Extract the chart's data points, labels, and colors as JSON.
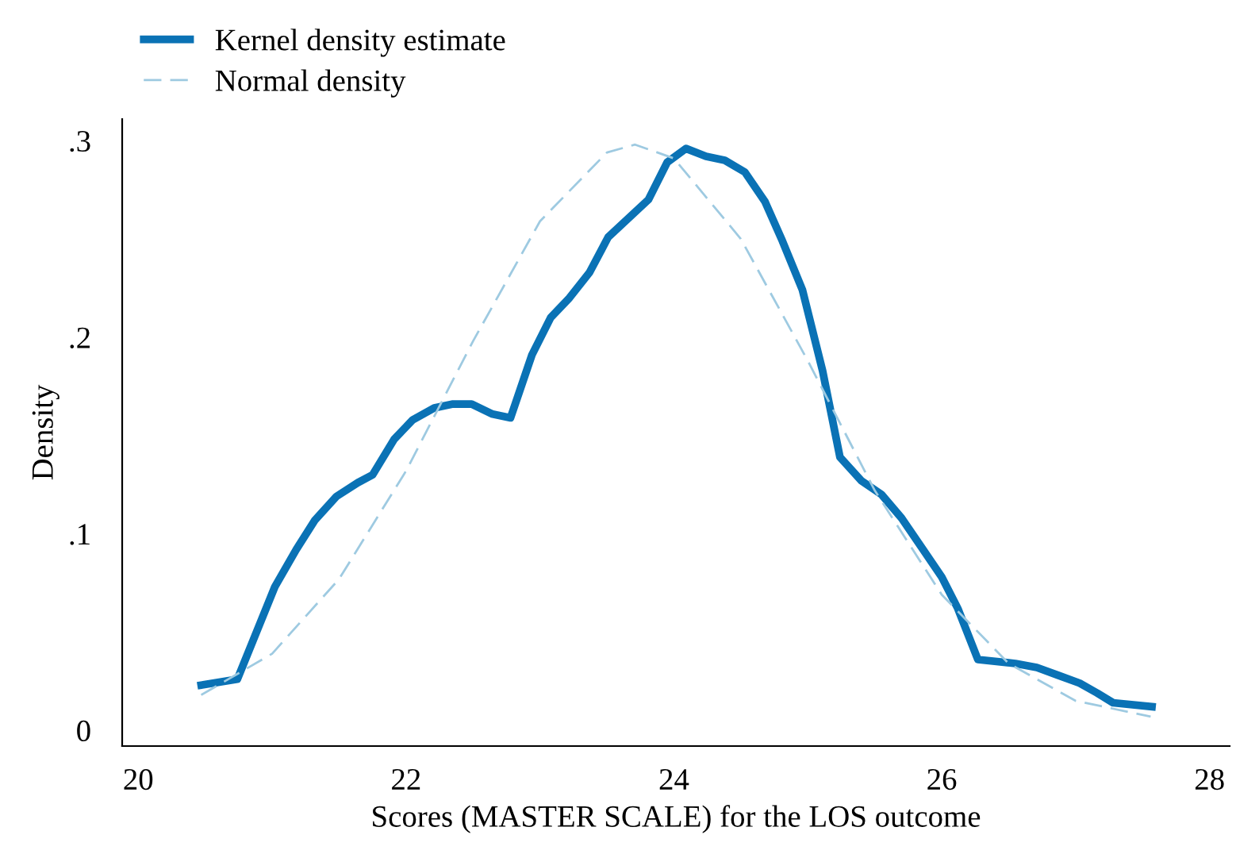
{
  "chart_data": {
    "type": "line",
    "xlabel": "Scores (MASTER SCALE) for the LOS outcome",
    "ylabel": "Density",
    "xlim": [
      19.88,
      28.15
    ],
    "ylim": [
      -0.008,
      0.311
    ],
    "xticks": [
      20,
      22,
      24,
      26,
      28
    ],
    "yticks": [
      {
        "value": 0,
        "label": "0"
      },
      {
        "value": 0.1,
        "label": ".1"
      },
      {
        "value": 0.2,
        "label": ".2"
      },
      {
        "value": 0.3,
        "label": ".3"
      }
    ],
    "grid": false,
    "legend": "top left",
    "marker": "none",
    "series": [
      {
        "name": "Kernel density estimate",
        "color": "#0a72b5",
        "line_style": "solid",
        "x": [
          20.47,
          20.74,
          21.02,
          21.18,
          21.32,
          21.48,
          21.64,
          21.75,
          21.91,
          22.05,
          22.21,
          22.35,
          22.49,
          22.64,
          22.78,
          22.94,
          23.08,
          23.22,
          23.37,
          23.51,
          23.81,
          23.95,
          24.09,
          24.24,
          24.38,
          24.53,
          24.68,
          24.81,
          24.96,
          25.11,
          25.24,
          25.4,
          25.55,
          25.7,
          25.86,
          26.0,
          26.12,
          26.27,
          26.55,
          26.71,
          26.87,
          27.03,
          27.16,
          27.28,
          27.57
        ],
        "values": [
          0.023,
          0.026,
          0.073,
          0.092,
          0.107,
          0.119,
          0.126,
          0.13,
          0.148,
          0.158,
          0.164,
          0.166,
          0.166,
          0.161,
          0.159,
          0.191,
          0.21,
          0.22,
          0.233,
          0.251,
          0.27,
          0.289,
          0.296,
          0.292,
          0.29,
          0.284,
          0.269,
          0.249,
          0.224,
          0.183,
          0.139,
          0.127,
          0.12,
          0.108,
          0.092,
          0.078,
          0.062,
          0.036,
          0.034,
          0.032,
          0.028,
          0.024,
          0.019,
          0.014,
          0.012
        ]
      },
      {
        "name": "Normal density",
        "color": "#9ecae1",
        "line_style": "dashed",
        "x": [
          20.47,
          21.0,
          21.5,
          22.0,
          22.5,
          23.0,
          23.5,
          23.71,
          24.0,
          24.5,
          25.0,
          25.5,
          26.0,
          26.5,
          27.0,
          27.56
        ],
        "values": [
          0.018,
          0.039,
          0.077,
          0.132,
          0.198,
          0.259,
          0.294,
          0.298,
          0.291,
          0.25,
          0.188,
          0.122,
          0.069,
          0.034,
          0.015,
          0.007
        ]
      }
    ]
  }
}
